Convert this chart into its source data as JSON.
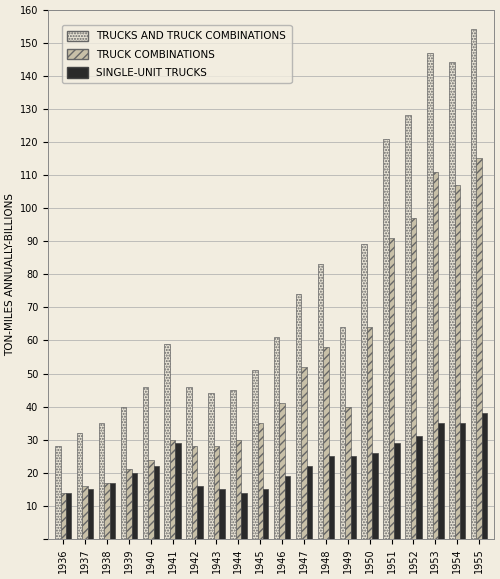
{
  "years": [
    1936,
    1937,
    1938,
    1939,
    1940,
    1941,
    1942,
    1943,
    1944,
    1945,
    1946,
    1947,
    1948,
    1949,
    1950,
    1951,
    1952,
    1953,
    1954,
    1955
  ],
  "total": [
    28,
    32,
    35,
    40,
    46,
    59,
    46,
    44,
    45,
    51,
    61,
    74,
    83,
    64,
    89,
    121,
    128,
    147,
    144,
    154
  ],
  "truck_combinations": [
    14,
    16,
    17,
    21,
    24,
    30,
    28,
    28,
    30,
    35,
    41,
    52,
    58,
    40,
    64,
    91,
    97,
    111,
    107,
    115
  ],
  "single_unit": [
    14,
    15,
    17,
    20,
    22,
    29,
    16,
    15,
    14,
    15,
    19,
    22,
    25,
    25,
    26,
    29,
    31,
    35,
    35,
    38
  ],
  "background_color": "#f2ede0",
  "ylabel": "TON-MILES ANNUALLY-BILLIONS",
  "ylim": [
    0,
    160
  ],
  "yticks": [
    0,
    10,
    20,
    30,
    40,
    50,
    60,
    70,
    80,
    90,
    100,
    110,
    120,
    130,
    140,
    150,
    160
  ],
  "legend_labels": [
    "TRUCKS AND TRUCK COMBINATIONS",
    "TRUCK COMBINATIONS",
    "SINGLE-UNIT TRUCKS"
  ],
  "tick_fontsize": 7,
  "legend_fontsize": 7.5,
  "bar_width": 0.25,
  "total_facecolor": "#e8e3d5",
  "combinations_facecolor": "#c8c0a8",
  "single_unit_facecolor": "#2a2a2a"
}
